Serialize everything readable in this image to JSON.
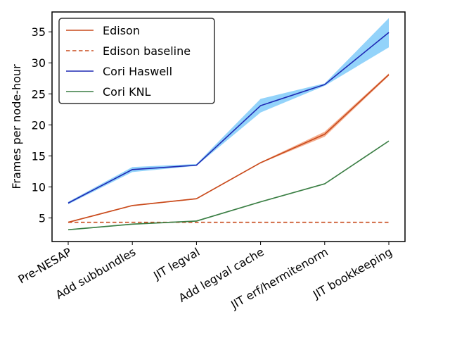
{
  "chart_data": {
    "type": "line",
    "title": "",
    "xlabel": "",
    "ylabel": "Frames per node-hour",
    "ylim": [
      1.2,
      38.2
    ],
    "yticks": [
      5,
      10,
      15,
      20,
      25,
      30,
      35
    ],
    "categories": [
      "Pre-NESAP",
      "Add subbundles",
      "JIT legval",
      "Add legval cache",
      "JIT erf/hermitenorm",
      "JIT bookkeeping"
    ],
    "legend_position": "top-left",
    "series": [
      {
        "name": "Edison",
        "style": "solid",
        "color": "#c84a1c",
        "band_color": "#f4a582",
        "values": [
          4.3,
          7.0,
          8.1,
          13.9,
          18.5,
          28.1
        ],
        "lower": [
          4.2,
          6.9,
          8.0,
          13.8,
          18.1,
          27.9
        ],
        "upper": [
          4.4,
          7.1,
          8.2,
          14.0,
          18.9,
          28.3
        ]
      },
      {
        "name": "Edison baseline",
        "style": "dashed",
        "color": "#c84a1c",
        "values": [
          4.3,
          4.3,
          4.3,
          4.3,
          4.3,
          4.3
        ]
      },
      {
        "name": "Cori Haswell",
        "style": "solid",
        "color": "#1f28b4",
        "band_color": "#87cefa",
        "values": [
          7.4,
          12.8,
          13.5,
          23.1,
          26.5,
          34.9
        ],
        "lower": [
          7.2,
          12.4,
          13.4,
          22.0,
          26.3,
          32.5
        ],
        "upper": [
          7.6,
          13.2,
          13.7,
          24.2,
          26.7,
          37.2
        ]
      },
      {
        "name": "Cori KNL",
        "style": "solid",
        "color": "#3a7d44",
        "band_color": "#a8d5a8",
        "values": [
          3.1,
          4.0,
          4.5,
          7.6,
          10.5,
          17.4
        ],
        "lower": [
          3.0,
          3.9,
          4.4,
          7.5,
          10.4,
          17.3
        ],
        "upper": [
          3.2,
          4.1,
          4.6,
          7.7,
          10.6,
          17.5
        ]
      }
    ]
  }
}
